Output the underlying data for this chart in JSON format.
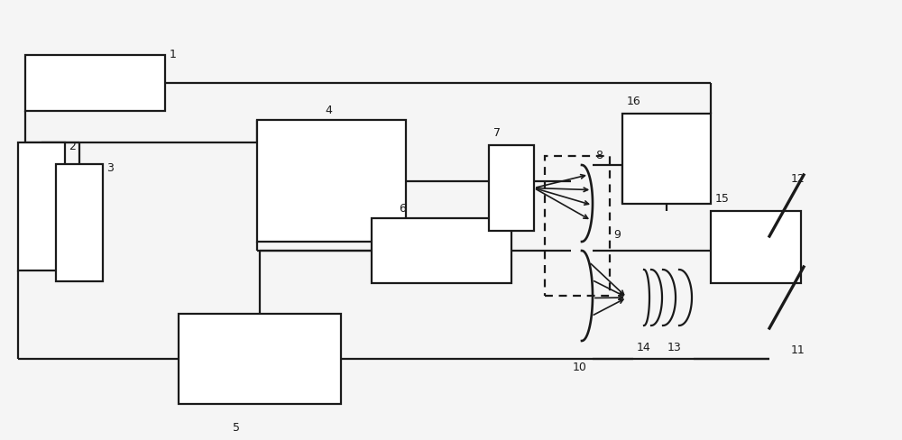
{
  "bg_color": "#f5f5f5",
  "line_color": "#1a1a1a",
  "lw": 1.6,
  "fig_w": 10.0,
  "fig_h": 4.89
}
